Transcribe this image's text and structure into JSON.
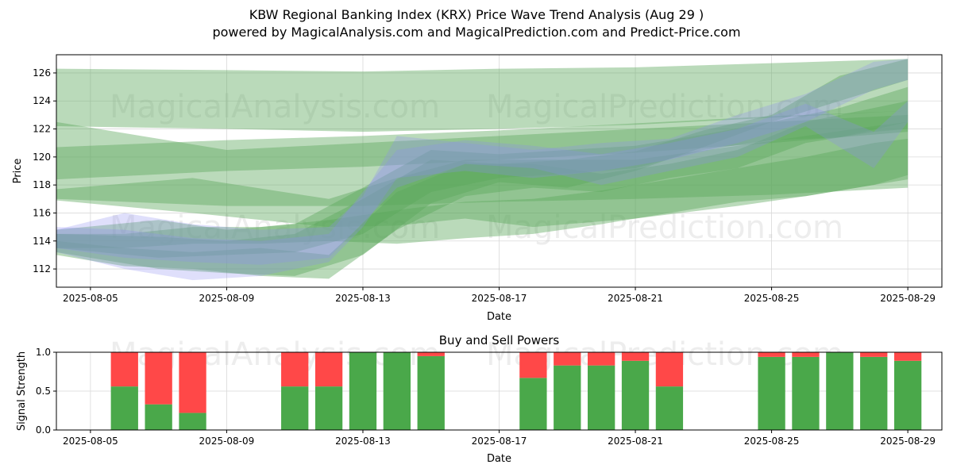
{
  "title_line1": "KBW Regional Banking Index (KRX) Price Wave Trend Analysis (Aug 29 )",
  "title_line2": "powered by MagicalAnalysis.com and MagicalPrediction.com and Predict-Price.com",
  "watermarks": [
    "MagicalAnalysis.com",
    "MagicalPrediction.com"
  ],
  "colors": {
    "green_band": "#5aa85a",
    "blue_band": "#8c8cf0",
    "buy": "#4aa84a",
    "sell": "#ff4848",
    "grid": "#d9d9d9"
  },
  "chart_data": [
    {
      "type": "area",
      "title": "",
      "xlabel": "Date",
      "ylabel": "Price",
      "xlim": [
        "2025-08-04",
        "2025-08-30"
      ],
      "ylim": [
        110.7,
        127.3
      ],
      "x_ticks": [
        "2025-08-05",
        "2025-08-09",
        "2025-08-13",
        "2025-08-17",
        "2025-08-21",
        "2025-08-25",
        "2025-08-29"
      ],
      "y_ticks": [
        112,
        114,
        116,
        118,
        120,
        122,
        124,
        126
      ],
      "grid": true,
      "series": [
        {
          "color": "green",
          "x": [
            "2025-08-04",
            "2025-08-09",
            "2025-08-13",
            "2025-08-17",
            "2025-08-21",
            "2025-08-25",
            "2025-08-29"
          ],
          "lower": [
            122.2,
            122.0,
            121.8,
            122.0,
            122.3,
            122.8,
            123.3
          ],
          "upper": [
            126.3,
            126.2,
            126.1,
            126.3,
            126.4,
            126.7,
            127.0
          ]
        },
        {
          "color": "green",
          "x": [
            "2025-08-04",
            "2025-08-09",
            "2025-08-13",
            "2025-08-17",
            "2025-08-21",
            "2025-08-25",
            "2025-08-29"
          ],
          "lower": [
            117.0,
            116.5,
            116.5,
            116.8,
            117.0,
            117.3,
            117.8
          ],
          "upper": [
            122.5,
            120.5,
            121.0,
            121.5,
            122.0,
            122.5,
            123.0
          ]
        },
        {
          "color": "green",
          "x": [
            "2025-08-04",
            "2025-08-09",
            "2025-08-13",
            "2025-08-17",
            "2025-08-21",
            "2025-08-25",
            "2025-08-29"
          ],
          "lower": [
            118.4,
            119.0,
            119.3,
            119.8,
            120.3,
            121.0,
            121.8
          ],
          "upper": [
            120.7,
            121.2,
            121.5,
            121.9,
            122.4,
            122.9,
            123.3
          ]
        },
        {
          "color": "green",
          "x": [
            "2025-08-04",
            "2025-08-08",
            "2025-08-12",
            "2025-08-14",
            "2025-08-16",
            "2025-08-18",
            "2025-08-21",
            "2025-08-24",
            "2025-08-26",
            "2025-08-28",
            "2025-08-29"
          ],
          "lower": [
            116.9,
            116.0,
            115.0,
            115.1,
            115.6,
            115.0,
            115.6,
            116.5,
            117.2,
            118.0,
            118.7
          ],
          "upper": [
            117.7,
            118.5,
            117.0,
            118.5,
            119.8,
            119.8,
            119.8,
            120.8,
            121.5,
            122.2,
            122.5
          ]
        },
        {
          "color": "green",
          "x": [
            "2025-08-04",
            "2025-08-07",
            "2025-08-09",
            "2025-08-11",
            "2025-08-13",
            "2025-08-15",
            "2025-08-17",
            "2025-08-19",
            "2025-08-21",
            "2025-08-23",
            "2025-08-25",
            "2025-08-27",
            "2025-08-29"
          ],
          "lower": [
            113.2,
            112.0,
            111.7,
            111.5,
            113.0,
            116.7,
            118.2,
            117.8,
            119.0,
            120.7,
            122.5,
            124.0,
            125.5
          ],
          "upper": [
            114.5,
            114.3,
            114.0,
            114.5,
            117.0,
            119.8,
            119.5,
            119.8,
            120.4,
            121.9,
            123.0,
            125.8,
            127.0
          ]
        },
        {
          "color": "green",
          "x": [
            "2025-08-04",
            "2025-08-07",
            "2025-08-09",
            "2025-08-11",
            "2025-08-13",
            "2025-08-15",
            "2025-08-17",
            "2025-08-19",
            "2025-08-21",
            "2025-08-23",
            "2025-08-25",
            "2025-08-27",
            "2025-08-29"
          ],
          "lower": [
            113.5,
            112.8,
            113.0,
            113.2,
            114.5,
            117.5,
            118.5,
            118.8,
            119.2,
            120.5,
            121.2,
            121.4,
            122.5
          ],
          "upper": [
            114.8,
            115.5,
            114.8,
            115.2,
            117.8,
            120.5,
            120.2,
            120.5,
            120.8,
            121.6,
            122.5,
            123.5,
            125.0
          ]
        },
        {
          "color": "green",
          "x": [
            "2025-08-04",
            "2025-08-06",
            "2025-08-08",
            "2025-08-10",
            "2025-08-12",
            "2025-08-14",
            "2025-08-16",
            "2025-08-18",
            "2025-08-20",
            "2025-08-22",
            "2025-08-24",
            "2025-08-26",
            "2025-08-28",
            "2025-08-29"
          ],
          "lower": [
            113.0,
            112.2,
            112.0,
            111.5,
            111.3,
            114.8,
            117.2,
            117.8,
            117.5,
            118.5,
            119.2,
            121.0,
            121.8,
            122.0
          ],
          "upper": [
            114.0,
            113.5,
            113.2,
            113.5,
            113.0,
            117.5,
            119.5,
            119.5,
            118.8,
            119.5,
            120.5,
            122.5,
            123.5,
            124.0
          ]
        },
        {
          "color": "green",
          "x": [
            "2025-08-04",
            "2025-08-06",
            "2025-08-08",
            "2025-08-10",
            "2025-08-12",
            "2025-08-14",
            "2025-08-16",
            "2025-08-18",
            "2025-08-20",
            "2025-08-22",
            "2025-08-24",
            "2025-08-26",
            "2025-08-28",
            "2025-08-29"
          ],
          "lower": [
            113.5,
            113.5,
            113.8,
            113.8,
            114.0,
            113.8,
            114.2,
            114.5,
            115.2,
            116.0,
            116.8,
            117.2,
            118.0,
            118.4
          ],
          "upper": [
            114.5,
            114.5,
            115.0,
            115.0,
            115.5,
            116.2,
            116.8,
            117.0,
            117.6,
            118.4,
            119.2,
            120.0,
            121.0,
            121.3
          ]
        },
        {
          "color": "blue",
          "x": [
            "2025-08-04",
            "2025-08-06",
            "2025-08-08",
            "2025-08-10",
            "2025-08-12",
            "2025-08-13",
            "2025-08-14",
            "2025-08-16",
            "2025-08-18",
            "2025-08-20",
            "2025-08-22",
            "2025-08-24",
            "2025-08-26",
            "2025-08-28",
            "2025-08-29"
          ],
          "lower": [
            113.2,
            112.0,
            111.2,
            111.5,
            112.5,
            115.0,
            118.5,
            119.0,
            118.5,
            119.0,
            119.8,
            121.0,
            122.5,
            124.8,
            125.5
          ],
          "upper": [
            114.8,
            116.0,
            115.2,
            114.8,
            115.0,
            117.2,
            121.5,
            121.0,
            120.5,
            121.0,
            121.3,
            123.0,
            124.5,
            126.8,
            127.0
          ]
        },
        {
          "color": "blue",
          "x": [
            "2025-08-04",
            "2025-08-06",
            "2025-08-08",
            "2025-08-10",
            "2025-08-12",
            "2025-08-14",
            "2025-08-16",
            "2025-08-18",
            "2025-08-20",
            "2025-08-22",
            "2025-08-24",
            "2025-08-26",
            "2025-08-28",
            "2025-08-29"
          ],
          "lower": [
            113.5,
            112.8,
            112.5,
            112.3,
            112.8,
            117.8,
            119.5,
            119.2,
            118.0,
            119.0,
            120.0,
            122.2,
            119.2,
            122.5
          ],
          "upper": [
            115.0,
            114.8,
            114.2,
            114.0,
            114.5,
            120.5,
            121.2,
            120.8,
            120.2,
            121.0,
            122.0,
            123.8,
            121.8,
            124.0
          ]
        }
      ]
    },
    {
      "type": "bar",
      "title": "Buy and Sell Powers",
      "xlabel": "Date",
      "ylabel": "Signal Strength",
      "xlim": [
        "2025-08-04",
        "2025-08-30"
      ],
      "ylim": [
        0,
        1.0
      ],
      "x_ticks": [
        "2025-08-05",
        "2025-08-09",
        "2025-08-13",
        "2025-08-17",
        "2025-08-21",
        "2025-08-25",
        "2025-08-29"
      ],
      "y_ticks": [
        "0.0",
        "0.5",
        "1.0"
      ],
      "grid": true,
      "stacked": true,
      "categories": [
        "2025-08-06",
        "2025-08-07",
        "2025-08-08",
        "2025-08-11",
        "2025-08-12",
        "2025-08-13",
        "2025-08-14",
        "2025-08-15",
        "2025-08-18",
        "2025-08-19",
        "2025-08-20",
        "2025-08-21",
        "2025-08-22",
        "2025-08-25",
        "2025-08-26",
        "2025-08-27",
        "2025-08-28",
        "2025-08-29"
      ],
      "series": [
        {
          "name": "Buy",
          "color": "green",
          "values": [
            0.56,
            0.33,
            0.22,
            0.56,
            0.56,
            1.0,
            1.0,
            0.95,
            0.67,
            0.83,
            0.83,
            0.89,
            0.56,
            0.94,
            0.94,
            1.0,
            0.94,
            0.89
          ]
        },
        {
          "name": "Sell",
          "color": "red",
          "values": [
            0.44,
            0.67,
            0.78,
            0.44,
            0.44,
            0.0,
            0.0,
            0.05,
            0.33,
            0.17,
            0.17,
            0.11,
            0.44,
            0.06,
            0.06,
            0.0,
            0.06,
            0.11
          ]
        }
      ]
    }
  ]
}
